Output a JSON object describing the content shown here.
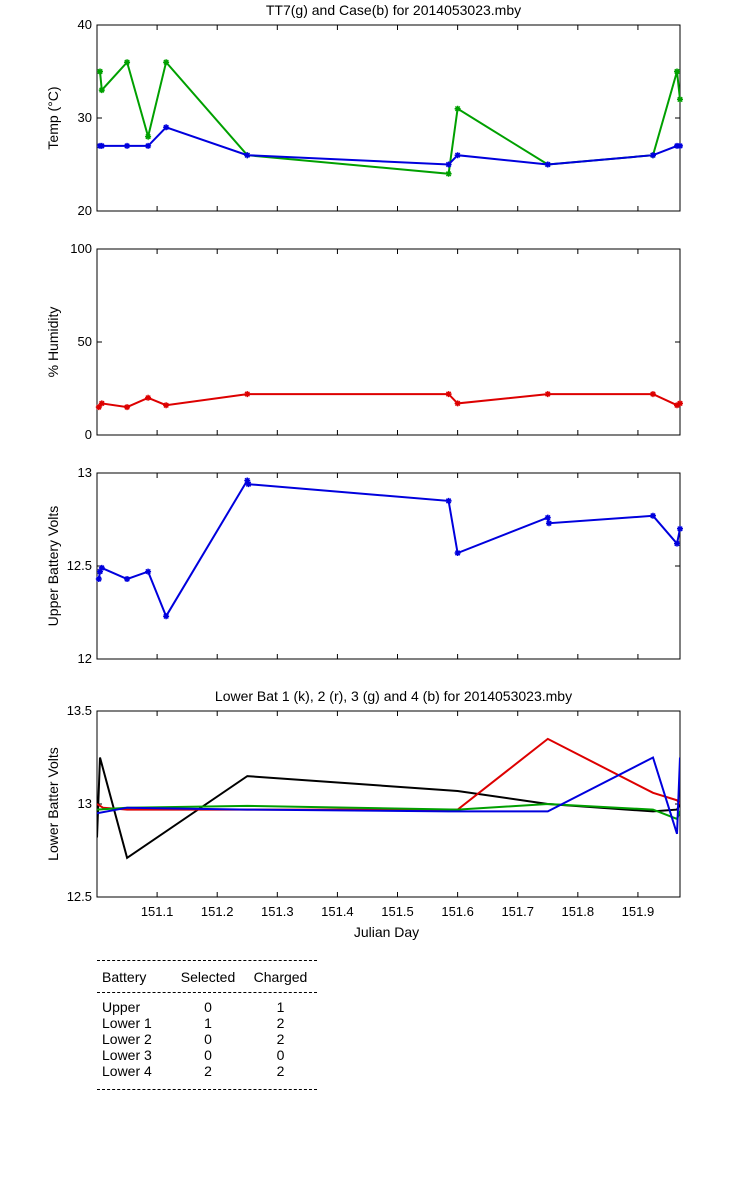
{
  "chart_data": [
    {
      "type": "line",
      "title": "TT7(g) and Case(b) for 2014053023.mby",
      "xlabel": "",
      "ylabel": "Temp  (°C)",
      "xlim": [
        151.0,
        151.97
      ],
      "ylim": [
        20,
        40
      ],
      "yticks": [
        20,
        30,
        40
      ],
      "series": [
        {
          "color": "#00a000",
          "marker": "star",
          "x": [
            151.005,
            151.008,
            151.05,
            151.085,
            151.115,
            151.25,
            151.585,
            151.6,
            151.75,
            151.925,
            151.965,
            151.97
          ],
          "y": [
            35,
            33,
            36,
            28,
            36,
            26,
            24,
            31,
            25,
            26,
            35,
            32
          ]
        },
        {
          "color": "#0000dd",
          "marker": "star",
          "x": [
            151.005,
            151.008,
            151.05,
            151.085,
            151.115,
            151.25,
            151.585,
            151.6,
            151.75,
            151.925,
            151.965,
            151.97
          ],
          "y": [
            27,
            27,
            27,
            27,
            29,
            26,
            25,
            26,
            25,
            26,
            27,
            27
          ]
        }
      ]
    },
    {
      "type": "line",
      "title": "",
      "xlabel": "",
      "ylabel": "% Humidity",
      "xlim": [
        151.0,
        151.97
      ],
      "ylim": [
        0,
        100
      ],
      "yticks": [
        0,
        50,
        100
      ],
      "series": [
        {
          "color": "#dd0000",
          "marker": "star",
          "x": [
            151.003,
            151.008,
            151.05,
            151.085,
            151.115,
            151.25,
            151.585,
            151.6,
            151.75,
            151.925,
            151.965,
            151.97
          ],
          "y": [
            15,
            17,
            15,
            20,
            16,
            22,
            22,
            17,
            22,
            22,
            16,
            17
          ]
        }
      ]
    },
    {
      "type": "line",
      "title": "",
      "xlabel": "",
      "ylabel": "Upper Battery Volts",
      "xlim": [
        151.0,
        151.97
      ],
      "ylim": [
        12,
        13
      ],
      "yticks": [
        12,
        12.5,
        13
      ],
      "series": [
        {
          "color": "#0000dd",
          "marker": "star",
          "x": [
            151.003,
            151.005,
            151.008,
            151.05,
            151.085,
            151.115,
            151.25,
            151.252,
            151.585,
            151.6,
            151.75,
            151.752,
            151.925,
            151.965,
            151.97
          ],
          "y": [
            12.43,
            12.47,
            12.49,
            12.43,
            12.47,
            12.23,
            12.96,
            12.94,
            12.85,
            12.57,
            12.76,
            12.73,
            12.77,
            12.62,
            12.7
          ]
        }
      ]
    },
    {
      "type": "line",
      "title": "Lower Bat 1 (k), 2 (r), 3 (g) and 4 (b) for 2014053023.mby",
      "xlabel": "Julian Day",
      "ylabel": "Lower Batter Volts",
      "xlim": [
        151.0,
        151.97
      ],
      "ylim": [
        12.5,
        13.5
      ],
      "yticks": [
        12.5,
        13,
        13.5
      ],
      "xticks": [
        151.1,
        151.2,
        151.3,
        151.4,
        151.5,
        151.6,
        151.7,
        151.8,
        151.9
      ],
      "series": [
        {
          "color": "#000000",
          "marker": "none",
          "x": [
            151.0,
            151.005,
            151.05,
            151.25,
            151.6,
            151.75,
            151.925,
            151.965,
            151.97
          ],
          "y": [
            12.82,
            13.25,
            12.71,
            13.15,
            13.07,
            13.0,
            12.96,
            12.97,
            13.0
          ]
        },
        {
          "color": "#dd0000",
          "marker": "none",
          "x": [
            151.0,
            151.01,
            151.05,
            151.585,
            151.6,
            151.75,
            151.925,
            151.965,
            151.97
          ],
          "y": [
            13.0,
            12.98,
            12.97,
            12.97,
            12.97,
            13.35,
            13.06,
            13.02,
            13.0
          ]
        },
        {
          "color": "#00a000",
          "marker": "none",
          "x": [
            151.0,
            151.05,
            151.25,
            151.6,
            151.75,
            151.925,
            151.965,
            151.97
          ],
          "y": [
            12.97,
            12.98,
            12.99,
            12.97,
            13.0,
            12.97,
            12.92,
            12.96
          ]
        },
        {
          "color": "#0000dd",
          "marker": "none",
          "x": [
            151.0,
            151.05,
            151.25,
            151.585,
            151.75,
            151.925,
            151.965,
            151.97
          ],
          "y": [
            12.95,
            12.98,
            12.97,
            12.96,
            12.96,
            13.25,
            12.84,
            13.25
          ]
        }
      ]
    }
  ],
  "table": {
    "headers": [
      "Battery",
      "Selected",
      "Charged"
    ],
    "rows": [
      [
        "Upper",
        "0",
        "1"
      ],
      [
        "Lower 1",
        "1",
        "2"
      ],
      [
        "Lower 2",
        "0",
        "2"
      ],
      [
        "Lower 3",
        "0",
        "0"
      ],
      [
        "Lower 4",
        "2",
        "2"
      ]
    ]
  }
}
